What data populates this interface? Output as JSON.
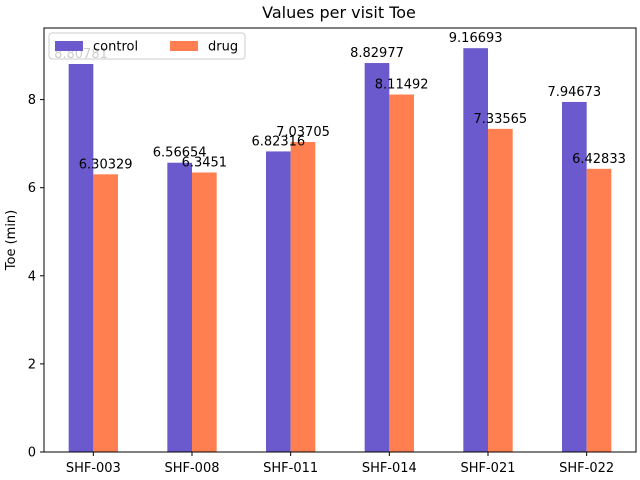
{
  "chart_data": {
    "type": "bar",
    "title": "Values per visit Toe",
    "xlabel": "",
    "ylabel": "Toe (min)",
    "categories": [
      "SHF-003",
      "SHF-008",
      "SHF-011",
      "SHF-014",
      "SHF-021",
      "SHF-022"
    ],
    "series": [
      {
        "name": "control",
        "color": "#6a5acd",
        "values": [
          8.80781,
          6.56654,
          6.82316,
          8.82977,
          9.16693,
          7.94673
        ],
        "labels": [
          "8.80781",
          "6.56654",
          "6.82316",
          "8.82977",
          "9.16693",
          "7.94673"
        ]
      },
      {
        "name": "drug",
        "color": "#ff7f50",
        "values": [
          6.30329,
          6.3451,
          7.03705,
          8.11492,
          7.33565,
          6.42833
        ],
        "labels": [
          "6.30329",
          "6.3451",
          "7.03705",
          "8.11492",
          "7.33565",
          "6.42833"
        ]
      }
    ],
    "ylim": [
      0,
      9.625
    ],
    "yticks": [
      0,
      2,
      4,
      6,
      8
    ],
    "grid": false,
    "legend_position": "top-left"
  }
}
